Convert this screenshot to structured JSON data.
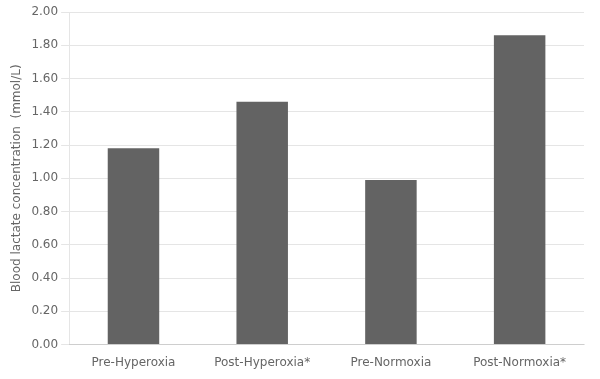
{
  "chart_data": {
    "type": "bar",
    "categories": [
      "Pre-Hyperoxia",
      "Post-Hyperoxia*",
      "Pre-Normoxia",
      "Post-Normoxia*"
    ],
    "values": [
      1.18,
      1.46,
      0.99,
      1.86
    ],
    "color": "#636363",
    "ylabel": "Blood lactate concentration  (mmol/L)",
    "ylim": [
      0.0,
      2.0
    ],
    "yticks": [
      {
        "value": 0.0,
        "label": "0.00"
      },
      {
        "value": 0.2,
        "label": "0.20"
      },
      {
        "value": 0.4,
        "label": "0.40"
      },
      {
        "value": 0.6,
        "label": "0.60"
      },
      {
        "value": 0.8,
        "label": "0.80"
      },
      {
        "value": 1.0,
        "label": "1.00"
      },
      {
        "value": 1.2,
        "label": "1.20"
      },
      {
        "value": 1.4,
        "label": "1.40"
      },
      {
        "value": 1.6,
        "label": "1.60"
      },
      {
        "value": 1.8,
        "label": "1.80"
      },
      {
        "value": 2.0,
        "label": "2.00"
      }
    ],
    "grid": true
  }
}
